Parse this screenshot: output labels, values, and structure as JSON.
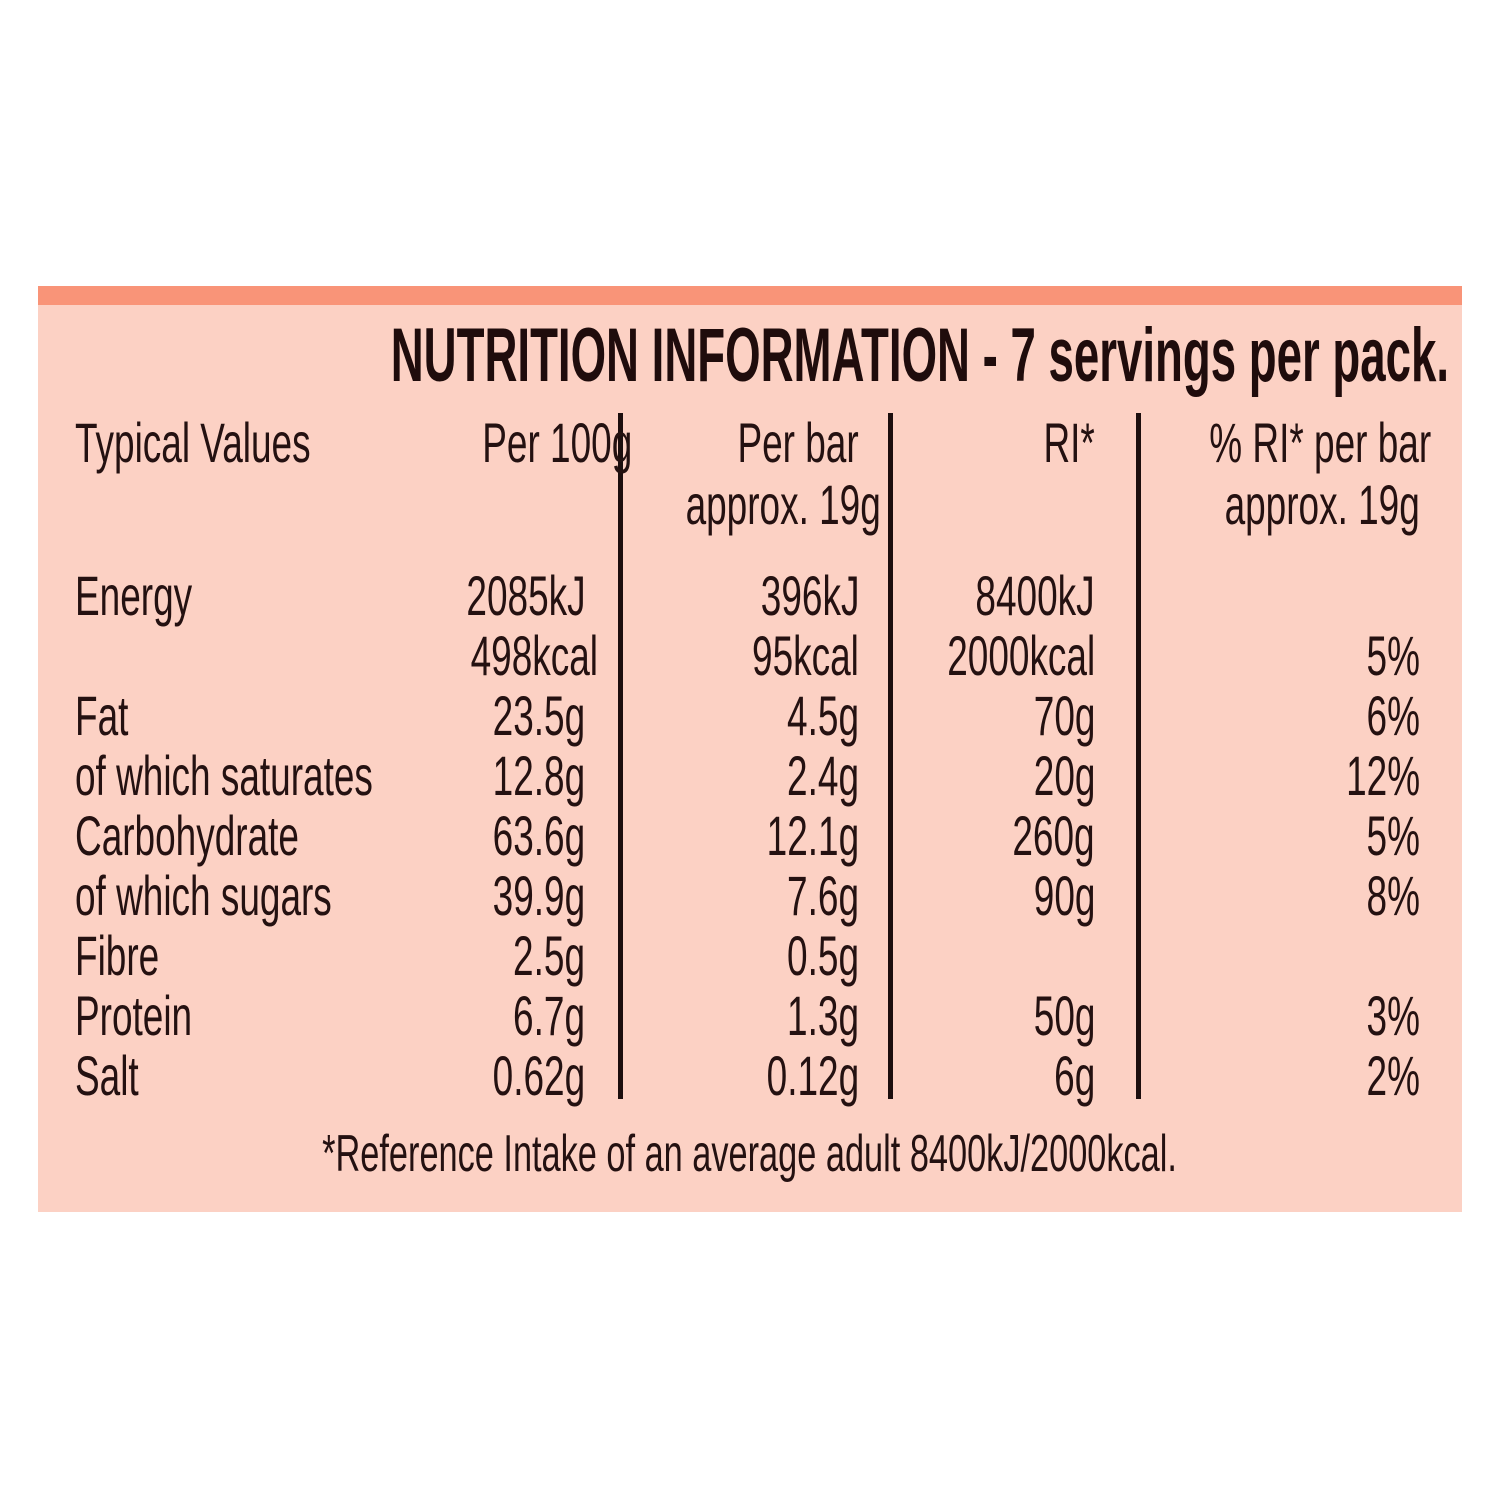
{
  "label": {
    "title": "NUTRITION INFORMATION - 7 servings per pack.",
    "footnote": "*Reference Intake of an average adult 8400kJ/2000kcal.",
    "servings_per_pack": "7",
    "serving_size": "approx. 19g",
    "colors": {
      "panel_background": "#fcd1c4",
      "accent_bar": "#f99478",
      "text": "#241111",
      "divider": "#1c0e0e",
      "page_background": "#ffffff"
    }
  },
  "table": {
    "headers": {
      "col1": "Typical Values",
      "col2": "Per 100g",
      "col3_line1": "Per bar",
      "col3_line2": "approx. 19g",
      "col4": "RI*",
      "col5_line1": "% RI* per bar",
      "col5_line2": "approx. 19g"
    },
    "rows": [
      {
        "label": "Energy",
        "per100": "2085kJ",
        "perbar": "396kJ",
        "ri": "8400kJ",
        "pct": ""
      },
      {
        "label": "",
        "per100": "498kcal",
        "perbar": "95kcal",
        "ri": "2000kcal",
        "pct": "5%"
      },
      {
        "label": "Fat",
        "per100": "23.5g",
        "perbar": "4.5g",
        "ri": "70g",
        "pct": "6%"
      },
      {
        "label": "of which saturates",
        "per100": "12.8g",
        "perbar": "2.4g",
        "ri": "20g",
        "pct": "12%"
      },
      {
        "label": "Carbohydrate",
        "per100": "63.6g",
        "perbar": "12.1g",
        "ri": "260g",
        "pct": "5%"
      },
      {
        "label": "of which sugars",
        "per100": "39.9g",
        "perbar": "7.6g",
        "ri": "90g",
        "pct": "8%"
      },
      {
        "label": "Fibre",
        "per100": "2.5g",
        "perbar": "0.5g",
        "ri": "",
        "pct": ""
      },
      {
        "label": "Protein",
        "per100": "6.7g",
        "perbar": "1.3g",
        "ri": "50g",
        "pct": "3%"
      },
      {
        "label": "Salt",
        "per100": "0.62g",
        "perbar": "0.12g",
        "ri": "6g",
        "pct": "2%"
      }
    ]
  }
}
